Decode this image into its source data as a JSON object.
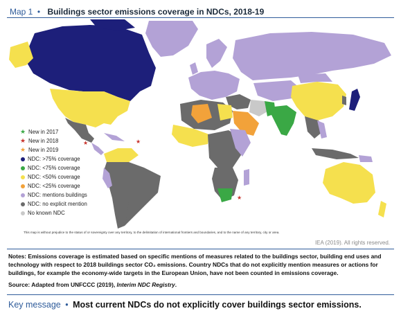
{
  "header": {
    "map_label": "Map 1",
    "title": "Buildings sector emissions coverage in NDCs, 2018-19"
  },
  "legend": [
    {
      "label": "New in 2017",
      "marker": "star",
      "color": "#3aa845"
    },
    {
      "label": "New in 2018",
      "marker": "star",
      "color": "#c8332c"
    },
    {
      "label": "New in 2019",
      "marker": "star",
      "color": "#f2a23a"
    },
    {
      "label": "NDC: >75% coverage",
      "marker": "circle",
      "color": "#1d1f7a"
    },
    {
      "label": "NDC: <75% coverage",
      "marker": "circle",
      "color": "#3aa845"
    },
    {
      "label": "NDC: <50% coverage",
      "marker": "circle",
      "color": "#f5e04e"
    },
    {
      "label": "NDC: <25% coverage",
      "marker": "circle",
      "color": "#f2a23a"
    },
    {
      "label": "NDC: mentions buildings",
      "marker": "circle",
      "color": "#b3a2d6"
    },
    {
      "label": "NDC: no explicit mention",
      "marker": "circle",
      "color": "#6b6b6b"
    },
    {
      "label": "No known NDC",
      "marker": "circle",
      "color": "#c9c9c9"
    }
  ],
  "disclaimer": "This map is without prejudice to the status of or sovereignty over any territory, to the delimitation of international frontiers and boundaries, and to the name of any territory, city or area.",
  "credit": "IEA (2019). All rights reserved.",
  "notes": "Notes: Emissions coverage is estimated based on specific mentions of measures related to the buildings sector, building end uses and technology with respect to 2018 buildings sector CO₂ emissions. Country NDCs that do not explicitly mention measures or actions for buildings, for example the economy-wide targets in the European Union, have not been counted in emissions coverage.",
  "source": {
    "prefix": "Source: Adapted from UNFCCC (2019), ",
    "italic": "Interim NDC Registry",
    "suffix": "."
  },
  "key_message": {
    "label": "Key message",
    "text": "Most current NDCs do not explicitly cover buildings sector emissions."
  },
  "map_colors": {
    "over75": "#1d1f7a",
    "under75": "#3aa845",
    "under50": "#f5e04e",
    "under25": "#f2a23a",
    "mentions": "#b3a2d6",
    "no_mention": "#6b6b6b",
    "none": "#c9c9c9",
    "ocean": "#ffffff"
  }
}
